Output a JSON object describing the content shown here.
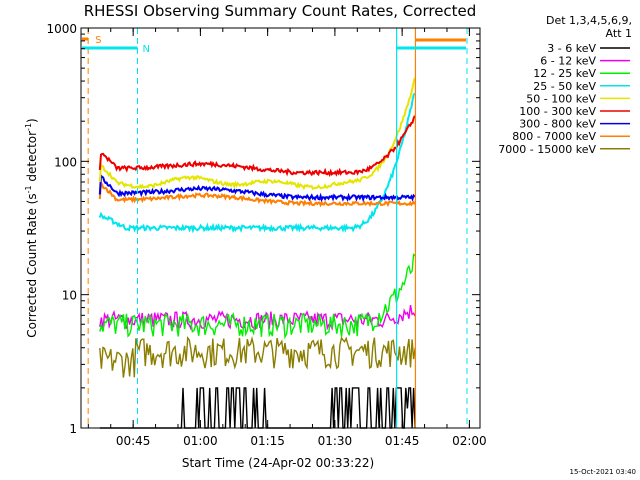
{
  "chart_data": {
    "type": "line",
    "title": "RHESSI Observing Summary Count Rates, Corrected",
    "xlabel": "Start Time (24-Apr-02 00:33:22)",
    "ylabel_parts": [
      "Corrected Count Rate (s",
      "-1",
      " detector",
      "-1",
      ")"
    ],
    "yscale": "log",
    "ylim": [
      1,
      1000
    ],
    "xlim_minutes_after_0033": [
      0,
      89
    ],
    "yticks": [
      "1",
      "10",
      "100",
      "1000"
    ],
    "xticks": [
      "00:45",
      "01:00",
      "01:15",
      "01:30",
      "01:45",
      "02:00"
    ],
    "legend_header": [
      "Det 1,3,4,5,6,9,",
      "Att 1"
    ],
    "legend_position": "right",
    "footer_date": "15-Oct-2021 03:40",
    "markers": [
      {
        "label": "S",
        "color": "#ff7f00"
      },
      {
        "label": "N",
        "color": "#00e5ee"
      }
    ],
    "series": [
      {
        "name": "3 - 6 keV",
        "color": "#000000",
        "typical": 1.5
      },
      {
        "name": "6 - 12 keV",
        "color": "#ee00ee",
        "typical": 6.5
      },
      {
        "name": "12 - 25 keV",
        "color": "#00ee00",
        "typical": 6
      },
      {
        "name": "25 - 50 keV",
        "color": "#00e5ee",
        "typical": 32
      },
      {
        "name": "50 - 100 keV",
        "color": "#e5e500",
        "typical": 68
      },
      {
        "name": "100 - 300 keV",
        "color": "#ee0000",
        "typical": 90
      },
      {
        "name": "300 - 800 keV",
        "color": "#0000ee",
        "typical": 58
      },
      {
        "name": "800 - 7000 keV",
        "color": "#ff7f00",
        "typical": 52
      },
      {
        "name": "7000 - 15000 keV",
        "color": "#8b7d00",
        "typical": 4
      }
    ]
  }
}
